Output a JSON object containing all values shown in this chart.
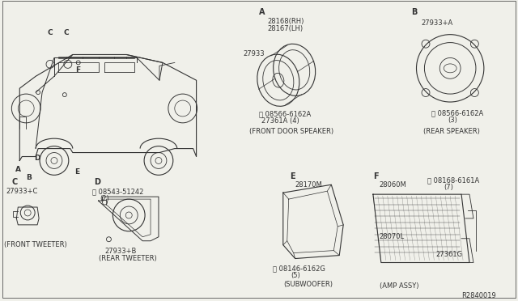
{
  "bg_color": "#f0f0ea",
  "line_color": "#333333",
  "diagram_ref": "R2840019",
  "sections": {
    "A_label": "A",
    "A_parts": [
      "28168(RH)",
      "28167(LH)",
      "27933",
      "27361A",
      "08566-6162A"
    ],
    "A_qty": "(4)",
    "A_caption": "(FRONT DOOR SPEAKER)",
    "B_label": "B",
    "B_parts": [
      "27933+A",
      "08566-6162A"
    ],
    "B_qty": "(3)",
    "B_caption": "(REAR SPEAKER)",
    "C_label": "C",
    "C_parts": [
      "27933+C"
    ],
    "C_caption": "(FRONT TWEETER)",
    "D_label": "D",
    "D_parts": [
      "08543-51242",
      "27933+B"
    ],
    "D_qty": "(2)",
    "D_caption": "(REAR TWEETER)",
    "E_label": "E",
    "E_parts": [
      "28170M",
      "08146-6162G"
    ],
    "E_qty": "(5)",
    "E_caption": "(SUBWOOFER)",
    "F_label": "F",
    "F_parts": [
      "28060M",
      "08168-6161A",
      "28070L",
      "27361G"
    ],
    "F_qty": "(7)",
    "F_caption": "(AMP ASSY)"
  }
}
